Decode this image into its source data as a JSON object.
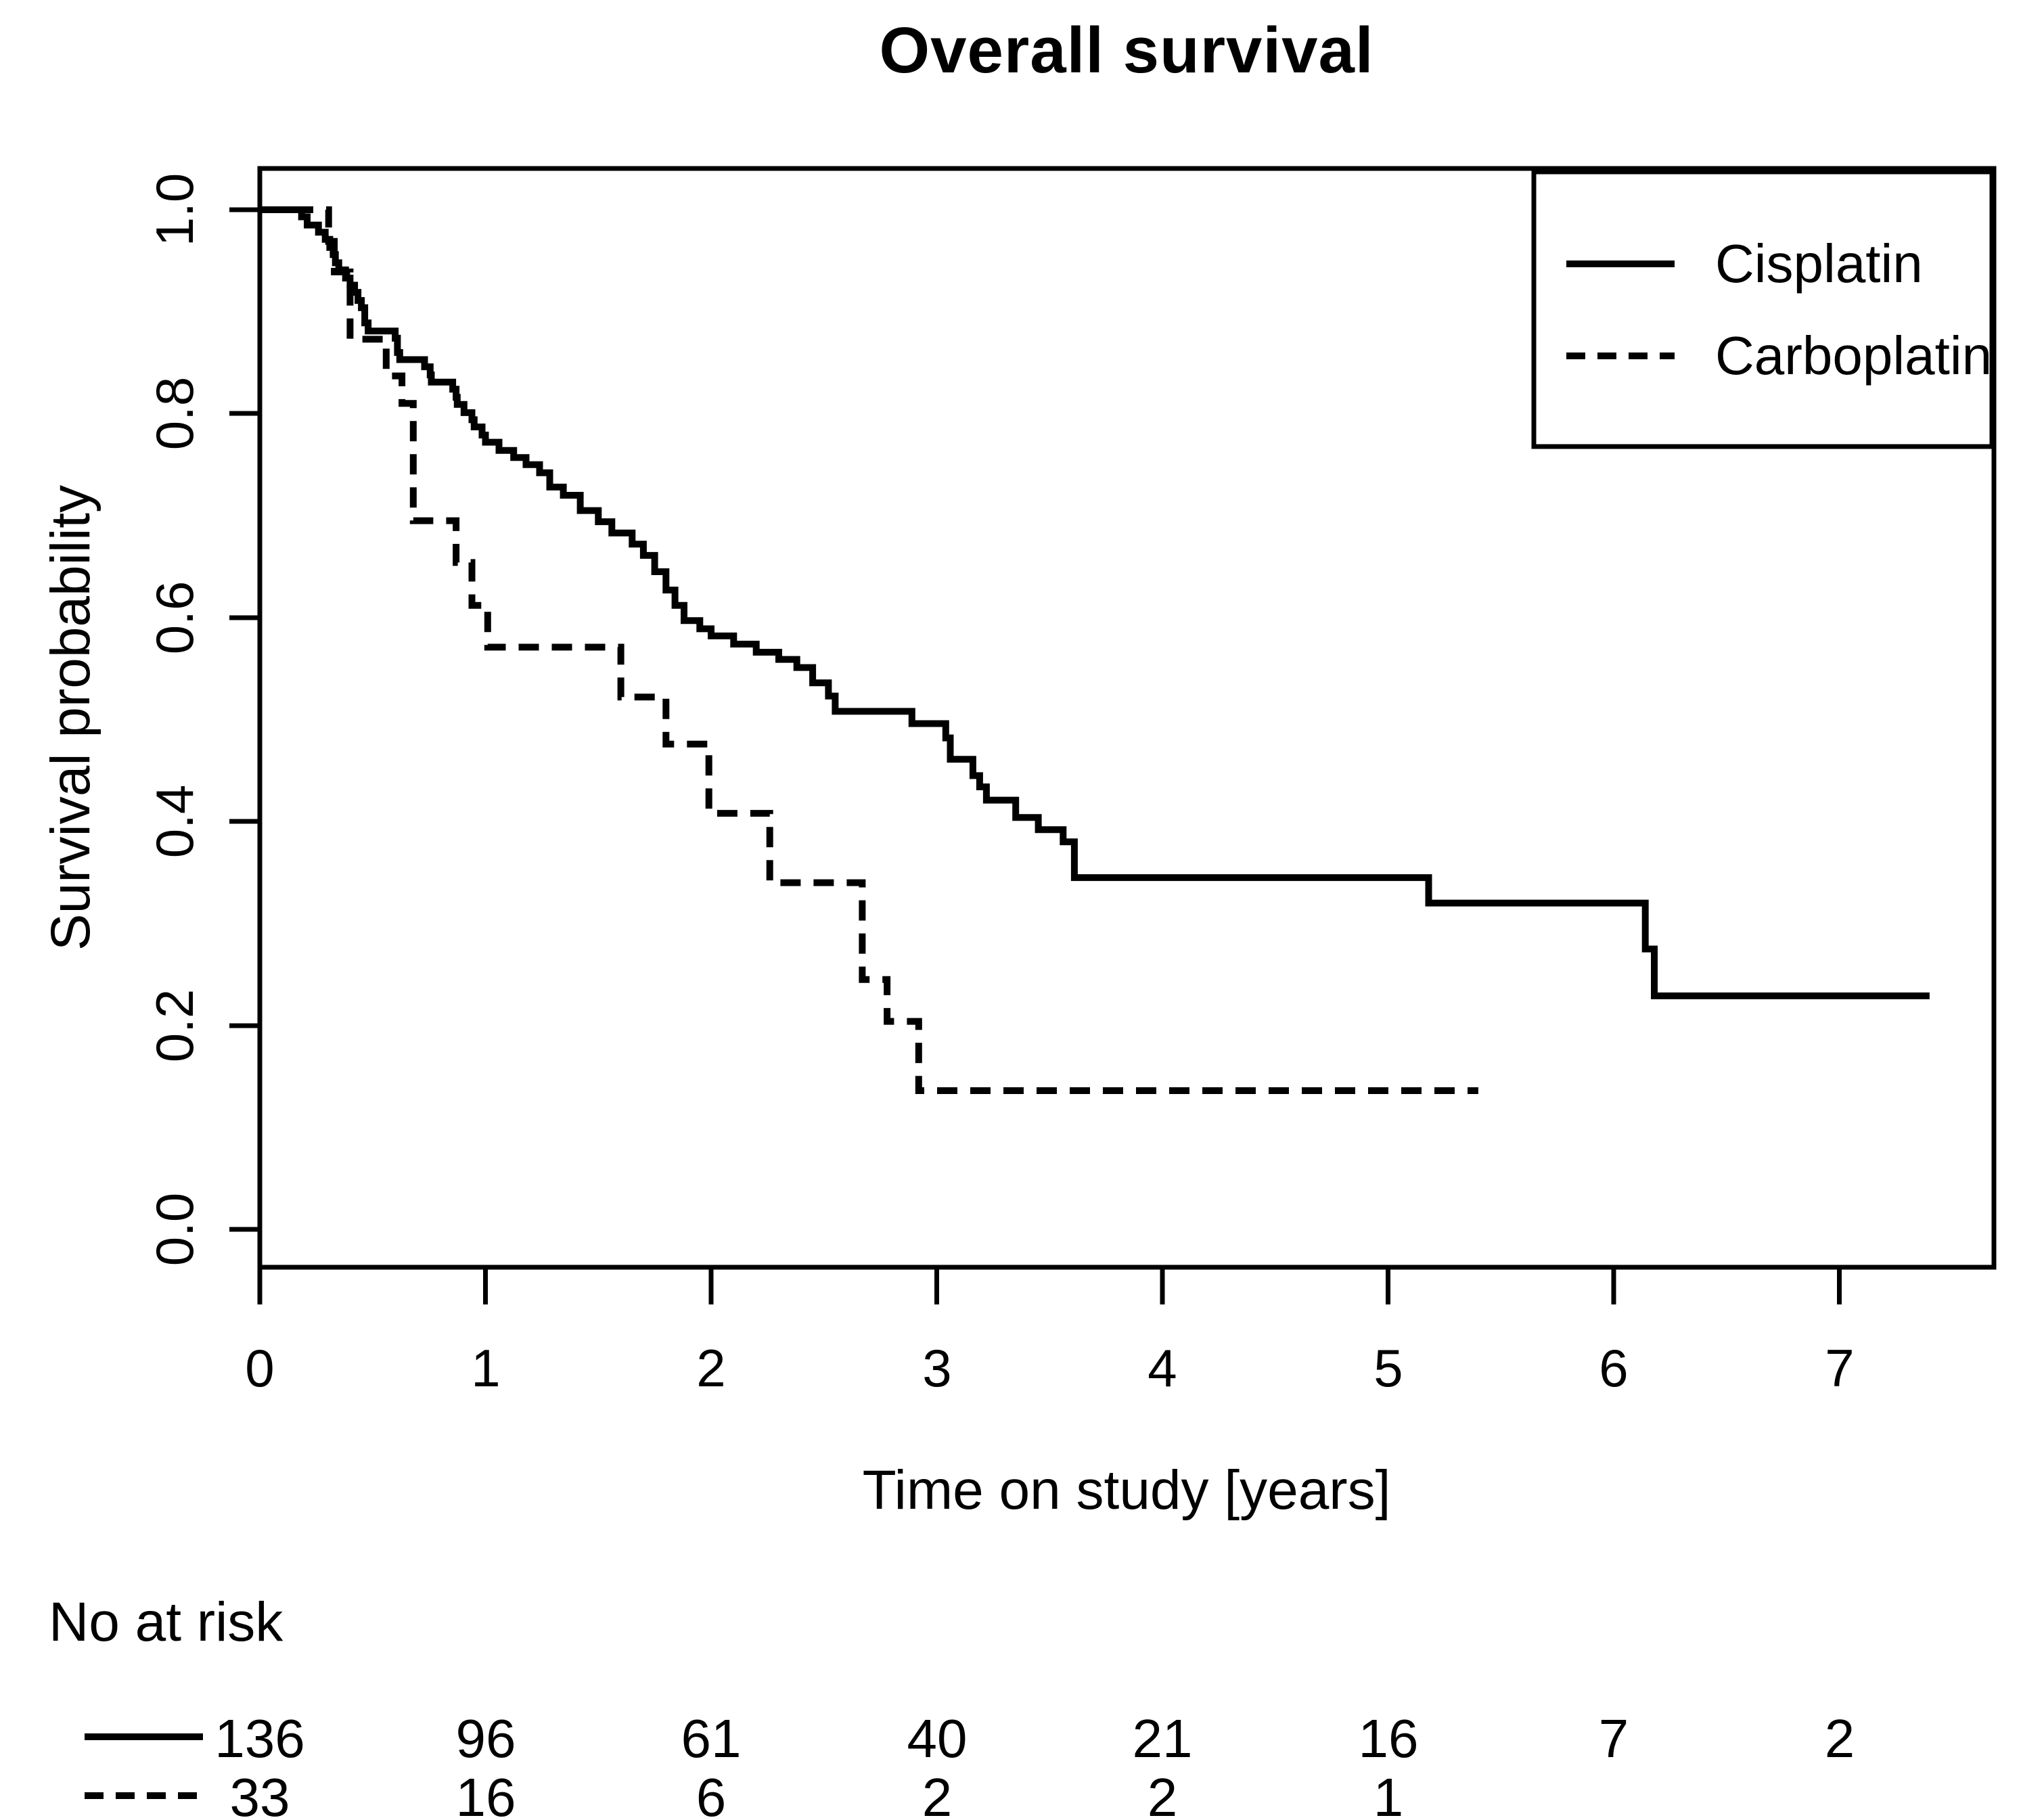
{
  "title": "Overall survival",
  "axes": {
    "x": {
      "label": "Time on study [years]",
      "ticks": [
        "0",
        "1",
        "2",
        "3",
        "4",
        "5",
        "6",
        "7"
      ]
    },
    "y": {
      "label": "Survival probability",
      "ticks": [
        "0.0",
        "0.2",
        "0.4",
        "0.6",
        "0.8",
        "1.0"
      ]
    }
  },
  "legend": {
    "items": [
      {
        "label": "Cisplatin",
        "line_style": "solid"
      },
      {
        "label": "Carboplatin",
        "line_style": "dashed"
      }
    ]
  },
  "risk_table": {
    "header": "No at risk",
    "rows": [
      {
        "group": "Cisplatin",
        "line_style": "solid",
        "counts": [
          "136",
          "96",
          "61",
          "40",
          "21",
          "16",
          "7",
          "2"
        ]
      },
      {
        "group": "Carboplatin",
        "line_style": "dashed",
        "counts": [
          "33",
          "16",
          "6",
          "2",
          "2",
          "1"
        ]
      }
    ]
  },
  "colors": {
    "foreground": "#000000",
    "background": "#ffffff"
  },
  "chart_data": {
    "type": "line",
    "subtype": "kaplan-meier-step",
    "title": "Overall survival",
    "xlabel": "Time on study [years]",
    "ylabel": "Survival probability",
    "xlim": [
      0,
      7.69
    ],
    "ylim": [
      0,
      1.04
    ],
    "x_ticks": [
      0,
      1,
      2,
      3,
      4,
      5,
      6,
      7
    ],
    "y_ticks": [
      0.0,
      0.2,
      0.4,
      0.6,
      0.8,
      1.0
    ],
    "grid": false,
    "legend_position": "top-right",
    "series": [
      {
        "name": "Cisplatin",
        "line": "solid",
        "n_start": 136,
        "t_end": 7.4,
        "steps": [
          [
            0.185,
            0.993
          ],
          [
            0.21,
            0.985
          ],
          [
            0.26,
            0.978
          ],
          [
            0.29,
            0.971
          ],
          [
            0.31,
            0.963
          ],
          [
            0.325,
            0.956
          ],
          [
            0.335,
            0.948
          ],
          [
            0.35,
            0.941
          ],
          [
            0.38,
            0.933
          ],
          [
            0.4,
            0.926
          ],
          [
            0.42,
            0.919
          ],
          [
            0.435,
            0.911
          ],
          [
            0.45,
            0.904
          ],
          [
            0.465,
            0.889
          ],
          [
            0.48,
            0.881
          ],
          [
            0.6,
            0.874
          ],
          [
            0.61,
            0.86
          ],
          [
            0.62,
            0.853
          ],
          [
            0.73,
            0.846
          ],
          [
            0.755,
            0.838
          ],
          [
            0.76,
            0.831
          ],
          [
            0.855,
            0.824
          ],
          [
            0.87,
            0.816
          ],
          [
            0.875,
            0.809
          ],
          [
            0.905,
            0.801
          ],
          [
            0.94,
            0.794
          ],
          [
            0.95,
            0.787
          ],
          [
            0.985,
            0.779
          ],
          [
            1.0,
            0.772
          ],
          [
            1.06,
            0.764
          ],
          [
            1.125,
            0.757
          ],
          [
            1.18,
            0.75
          ],
          [
            1.24,
            0.742
          ],
          [
            1.285,
            0.728
          ],
          [
            1.345,
            0.72
          ],
          [
            1.42,
            0.705
          ],
          [
            1.5,
            0.694
          ],
          [
            1.56,
            0.683
          ],
          [
            1.65,
            0.672
          ],
          [
            1.7,
            0.661
          ],
          [
            1.75,
            0.645
          ],
          [
            1.8,
            0.627
          ],
          [
            1.84,
            0.612
          ],
          [
            1.88,
            0.597
          ],
          [
            1.95,
            0.589
          ],
          [
            2.0,
            0.582
          ],
          [
            2.1,
            0.574
          ],
          [
            2.2,
            0.566
          ],
          [
            2.3,
            0.559
          ],
          [
            2.38,
            0.551
          ],
          [
            2.45,
            0.536
          ],
          [
            2.52,
            0.523
          ],
          [
            2.55,
            0.508
          ],
          [
            2.89,
            0.496
          ],
          [
            3.04,
            0.482
          ],
          [
            3.06,
            0.461
          ],
          [
            3.16,
            0.445
          ],
          [
            3.19,
            0.434
          ],
          [
            3.22,
            0.421
          ],
          [
            3.35,
            0.404
          ],
          [
            3.45,
            0.392
          ],
          [
            3.56,
            0.38
          ],
          [
            3.61,
            0.345
          ],
          [
            5.18,
            0.32
          ],
          [
            6.14,
            0.275
          ],
          [
            6.18,
            0.229
          ]
        ]
      },
      {
        "name": "Carboplatin",
        "line": "dashed",
        "n_start": 33,
        "t_end": 5.4,
        "steps": [
          [
            0.305,
            0.969
          ],
          [
            0.33,
            0.939
          ],
          [
            0.4,
            0.873
          ],
          [
            0.56,
            0.837
          ],
          [
            0.63,
            0.81
          ],
          [
            0.68,
            0.695
          ],
          [
            0.87,
            0.654
          ],
          [
            0.94,
            0.612
          ],
          [
            1.01,
            0.571
          ],
          [
            1.6,
            0.522
          ],
          [
            1.8,
            0.476
          ],
          [
            1.99,
            0.408
          ],
          [
            2.26,
            0.34
          ],
          [
            2.67,
            0.245
          ],
          [
            2.78,
            0.204
          ],
          [
            2.92,
            0.136
          ]
        ]
      }
    ],
    "at_risk": {
      "times": [
        0,
        1,
        2,
        3,
        4,
        5,
        6,
        7
      ],
      "Cisplatin": [
        136,
        96,
        61,
        40,
        21,
        16,
        7,
        2
      ],
      "Carboplatin": [
        33,
        16,
        6,
        2,
        2,
        1
      ]
    }
  }
}
